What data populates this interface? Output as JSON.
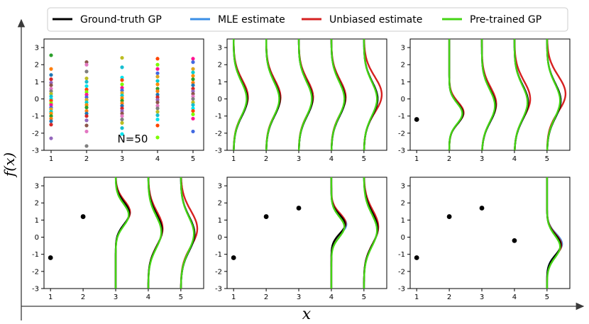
{
  "figure": {
    "x_axis_label": "x",
    "y_axis_label": "f(x)"
  },
  "legend": [
    {
      "label": "Ground-truth GP",
      "color": "#000000"
    },
    {
      "label": "MLE estimate",
      "color": "#3a8ee6"
    },
    {
      "label": "Unbiased estimate",
      "color": "#d62020"
    },
    {
      "label": "Pre-trained GP",
      "color": "#44d414"
    }
  ],
  "chart_data": [
    {
      "type": "scatter",
      "panel": "top-left",
      "annotation": "N=50",
      "xlim": [
        0.8,
        5.3
      ],
      "ylim": [
        -3,
        3.5
      ],
      "xticks": [
        1,
        2,
        3,
        4,
        5
      ],
      "yticks": [
        -3,
        -2,
        -1,
        0,
        1,
        2,
        3
      ],
      "observed_points": [],
      "sample_columns": [
        1,
        2,
        3,
        4,
        5
      ],
      "sample_values": [
        [
          2.55,
          1.75,
          1.4,
          1.15,
          0.95,
          0.8,
          0.6,
          0.45,
          0.3,
          0.15,
          0.0,
          -0.1,
          -0.25,
          -0.35,
          -0.5,
          -0.6,
          -0.75,
          -0.85,
          -1.0,
          -1.15,
          -1.3,
          -1.5,
          -2.3
        ],
        [
          2.15,
          2.0,
          1.6,
          1.2,
          1.0,
          0.75,
          0.55,
          0.4,
          0.25,
          0.1,
          -0.05,
          -0.2,
          -0.35,
          -0.5,
          -0.7,
          -0.85,
          -1.0,
          -1.25,
          -1.55,
          -1.9,
          -2.75
        ],
        [
          2.4,
          1.85,
          1.25,
          1.1,
          0.85,
          0.65,
          0.5,
          0.35,
          0.2,
          0.05,
          -0.1,
          -0.25,
          -0.4,
          -0.55,
          -0.7,
          -0.85,
          -1.0,
          -1.2,
          -1.4,
          -1.7,
          -2.05
        ],
        [
          2.35,
          2.0,
          1.75,
          1.5,
          1.3,
          1.05,
          0.85,
          0.6,
          0.45,
          0.25,
          0.1,
          -0.05,
          -0.2,
          -0.4,
          -0.55,
          -0.75,
          -0.95,
          -1.2,
          -1.55,
          -2.25
        ],
        [
          2.35,
          2.15,
          1.75,
          1.55,
          1.35,
          1.15,
          0.95,
          0.8,
          0.6,
          0.45,
          0.3,
          0.15,
          0.0,
          -0.2,
          -0.35,
          -0.55,
          -0.7,
          -0.9,
          -1.15,
          -1.9
        ]
      ]
    },
    {
      "type": "line",
      "panel": "top-middle",
      "xlim": [
        0.8,
        5.7
      ],
      "ylim": [
        -3,
        3.5
      ],
      "xticks": [
        1,
        2,
        3,
        4,
        5
      ],
      "yticks": [
        -3,
        -2,
        -1,
        0,
        1,
        2,
        3
      ],
      "observed_points": [],
      "densities": [
        {
          "x": 1,
          "series": [
            {
              "name": "Ground-truth GP",
              "mean": 0,
              "sd": 1,
              "scale": 1
            },
            {
              "name": "MLE estimate",
              "mean": 0,
              "sd": 1,
              "scale": 1
            },
            {
              "name": "Unbiased estimate",
              "mean": 0.1,
              "sd": 1.0,
              "scale": 1.05
            },
            {
              "name": "Pre-trained GP",
              "mean": 0,
              "sd": 1,
              "scale": 0.95
            }
          ]
        },
        {
          "x": 2,
          "series": [
            {
              "name": "Ground-truth GP",
              "mean": 0,
              "sd": 1,
              "scale": 1
            },
            {
              "name": "MLE estimate",
              "mean": 0,
              "sd": 1,
              "scale": 1
            },
            {
              "name": "Unbiased estimate",
              "mean": 0.1,
              "sd": 1.0,
              "scale": 1.05
            },
            {
              "name": "Pre-trained GP",
              "mean": 0,
              "sd": 1,
              "scale": 0.95
            }
          ]
        },
        {
          "x": 3,
          "series": [
            {
              "name": "Ground-truth GP",
              "mean": 0,
              "sd": 1,
              "scale": 1
            },
            {
              "name": "MLE estimate",
              "mean": 0,
              "sd": 1,
              "scale": 1
            },
            {
              "name": "Unbiased estimate",
              "mean": 0.1,
              "sd": 1.0,
              "scale": 1.05
            },
            {
              "name": "Pre-trained GP",
              "mean": 0,
              "sd": 1,
              "scale": 0.95
            }
          ]
        },
        {
          "x": 4,
          "series": [
            {
              "name": "Ground-truth GP",
              "mean": 0,
              "sd": 1,
              "scale": 1
            },
            {
              "name": "MLE estimate",
              "mean": 0,
              "sd": 1,
              "scale": 1
            },
            {
              "name": "Unbiased estimate",
              "mean": 0.1,
              "sd": 1.0,
              "scale": 1.05
            },
            {
              "name": "Pre-trained GP",
              "mean": 0,
              "sd": 1,
              "scale": 0.95
            }
          ]
        },
        {
          "x": 5,
          "series": [
            {
              "name": "Ground-truth GP",
              "mean": 0,
              "sd": 1,
              "scale": 1
            },
            {
              "name": "MLE estimate",
              "mean": 0,
              "sd": 1,
              "scale": 1
            },
            {
              "name": "Unbiased estimate",
              "mean": 0.25,
              "sd": 1.05,
              "scale": 1.3
            },
            {
              "name": "Pre-trained GP",
              "mean": 0,
              "sd": 1,
              "scale": 0.95
            }
          ]
        }
      ]
    },
    {
      "type": "line",
      "panel": "top-right",
      "xlim": [
        0.8,
        5.7
      ],
      "ylim": [
        -3,
        3.5
      ],
      "xticks": [
        1,
        2,
        3,
        4,
        5
      ],
      "yticks": [
        -3,
        -2,
        -1,
        0,
        1,
        2,
        3
      ],
      "observed_points": [
        {
          "x": 1,
          "y": -1.2
        }
      ],
      "densities": [
        {
          "x": 2,
          "series": [
            {
              "name": "Ground-truth GP",
              "mean": -0.85,
              "sd": 0.6,
              "scale": 1
            },
            {
              "name": "MLE estimate",
              "mean": -0.85,
              "sd": 0.6,
              "scale": 1
            },
            {
              "name": "Unbiased estimate",
              "mean": -0.8,
              "sd": 0.62,
              "scale": 1.05
            },
            {
              "name": "Pre-trained GP",
              "mean": -0.85,
              "sd": 0.6,
              "scale": 0.95
            }
          ]
        },
        {
          "x": 3,
          "series": [
            {
              "name": "Ground-truth GP",
              "mean": -0.4,
              "sd": 0.95,
              "scale": 1
            },
            {
              "name": "MLE estimate",
              "mean": -0.4,
              "sd": 0.95,
              "scale": 1
            },
            {
              "name": "Unbiased estimate",
              "mean": -0.3,
              "sd": 0.98,
              "scale": 1.05
            },
            {
              "name": "Pre-trained GP",
              "mean": -0.4,
              "sd": 0.95,
              "scale": 0.95
            }
          ]
        },
        {
          "x": 4,
          "series": [
            {
              "name": "Ground-truth GP",
              "mean": -0.2,
              "sd": 1,
              "scale": 1
            },
            {
              "name": "MLE estimate",
              "mean": -0.2,
              "sd": 1,
              "scale": 1
            },
            {
              "name": "Unbiased estimate",
              "mean": 0,
              "sd": 1.05,
              "scale": 1.15
            },
            {
              "name": "Pre-trained GP",
              "mean": -0.2,
              "sd": 1,
              "scale": 0.95
            }
          ]
        },
        {
          "x": 5,
          "series": [
            {
              "name": "Ground-truth GP",
              "mean": -0.1,
              "sd": 1,
              "scale": 1
            },
            {
              "name": "MLE estimate",
              "mean": -0.1,
              "sd": 1,
              "scale": 1
            },
            {
              "name": "Unbiased estimate",
              "mean": 0.3,
              "sd": 1.05,
              "scale": 1.35
            },
            {
              "name": "Pre-trained GP",
              "mean": -0.1,
              "sd": 1,
              "scale": 0.95
            }
          ]
        }
      ]
    },
    {
      "type": "line",
      "panel": "bottom-left",
      "xlim": [
        0.8,
        5.7
      ],
      "ylim": [
        -3,
        3.5
      ],
      "xticks": [
        1,
        2,
        3,
        4,
        5
      ],
      "yticks": [
        -3,
        -2,
        -1,
        0,
        1,
        2,
        3
      ],
      "observed_points": [
        {
          "x": 1,
          "y": -1.2
        },
        {
          "x": 2,
          "y": 1.2
        }
      ],
      "densities": [
        {
          "x": 3,
          "series": [
            {
              "name": "Ground-truth GP",
              "mean": 1.4,
              "sd": 0.65,
              "scale": 1
            },
            {
              "name": "MLE estimate",
              "mean": 1.4,
              "sd": 0.65,
              "scale": 1
            },
            {
              "name": "Unbiased estimate",
              "mean": 1.45,
              "sd": 0.68,
              "scale": 1.05
            },
            {
              "name": "Pre-trained GP",
              "mean": 1.3,
              "sd": 0.65,
              "scale": 0.95
            }
          ]
        },
        {
          "x": 4,
          "series": [
            {
              "name": "Ground-truth GP",
              "mean": 0.4,
              "sd": 0.95,
              "scale": 1
            },
            {
              "name": "MLE estimate",
              "mean": 0.4,
              "sd": 0.95,
              "scale": 1
            },
            {
              "name": "Unbiased estimate",
              "mean": 0.5,
              "sd": 0.98,
              "scale": 1.05
            },
            {
              "name": "Pre-trained GP",
              "mean": 0.3,
              "sd": 0.95,
              "scale": 0.95
            }
          ]
        },
        {
          "x": 5,
          "series": [
            {
              "name": "Ground-truth GP",
              "mean": 0.2,
              "sd": 1,
              "scale": 1
            },
            {
              "name": "MLE estimate",
              "mean": 0.2,
              "sd": 1,
              "scale": 1
            },
            {
              "name": "Unbiased estimate",
              "mean": 0.5,
              "sd": 1.05,
              "scale": 1.2
            },
            {
              "name": "Pre-trained GP",
              "mean": 0.2,
              "sd": 1,
              "scale": 0.95
            }
          ]
        }
      ]
    },
    {
      "type": "line",
      "panel": "bottom-middle",
      "xlim": [
        0.8,
        5.7
      ],
      "ylim": [
        -3,
        3.5
      ],
      "xticks": [
        1,
        2,
        3,
        4,
        5
      ],
      "yticks": [
        -3,
        -2,
        -1,
        0,
        1,
        2,
        3
      ],
      "observed_points": [
        {
          "x": 1,
          "y": -1.2
        },
        {
          "x": 2,
          "y": 1.2
        },
        {
          "x": 3,
          "y": 1.7
        }
      ],
      "densities": [
        {
          "x": 4,
          "series": [
            {
              "name": "Ground-truth GP",
              "mean": 0.75,
              "sd": 0.55,
              "scale": 1
            },
            {
              "name": "MLE estimate",
              "mean": 0.75,
              "sd": 0.55,
              "scale": 1.1
            },
            {
              "name": "Unbiased estimate",
              "mean": 0.8,
              "sd": 0.58,
              "scale": 1.05
            },
            {
              "name": "Pre-trained GP",
              "mean": 0.6,
              "sd": 0.6,
              "scale": 0.95
            }
          ]
        },
        {
          "x": 5,
          "series": [
            {
              "name": "Ground-truth GP",
              "mean": 0.5,
              "sd": 0.95,
              "scale": 1
            },
            {
              "name": "MLE estimate",
              "mean": 0.5,
              "sd": 0.95,
              "scale": 1
            },
            {
              "name": "Unbiased estimate",
              "mean": 0.6,
              "sd": 0.98,
              "scale": 1.05
            },
            {
              "name": "Pre-trained GP",
              "mean": 0.4,
              "sd": 0.95,
              "scale": 0.95
            }
          ]
        }
      ]
    },
    {
      "type": "line",
      "panel": "bottom-right",
      "xlim": [
        0.8,
        5.7
      ],
      "ylim": [
        -3,
        3.5
      ],
      "xticks": [
        1,
        2,
        3,
        4,
        5
      ],
      "yticks": [
        -3,
        -2,
        -1,
        0,
        1,
        2,
        3
      ],
      "observed_points": [
        {
          "x": 1,
          "y": -1.2
        },
        {
          "x": 2,
          "y": 1.2
        },
        {
          "x": 3,
          "y": 1.7
        },
        {
          "x": 4,
          "y": -0.2
        }
      ],
      "densities": [
        {
          "x": 5,
          "series": [
            {
              "name": "Ground-truth GP",
              "mean": -0.45,
              "sd": 0.6,
              "scale": 1
            },
            {
              "name": "MLE estimate",
              "mean": -0.4,
              "sd": 0.6,
              "scale": 1.1
            },
            {
              "name": "Unbiased estimate",
              "mean": -0.45,
              "sd": 0.62,
              "scale": 1.05
            },
            {
              "name": "Pre-trained GP",
              "mean": -0.55,
              "sd": 0.65,
              "scale": 0.95
            }
          ]
        }
      ]
    }
  ]
}
